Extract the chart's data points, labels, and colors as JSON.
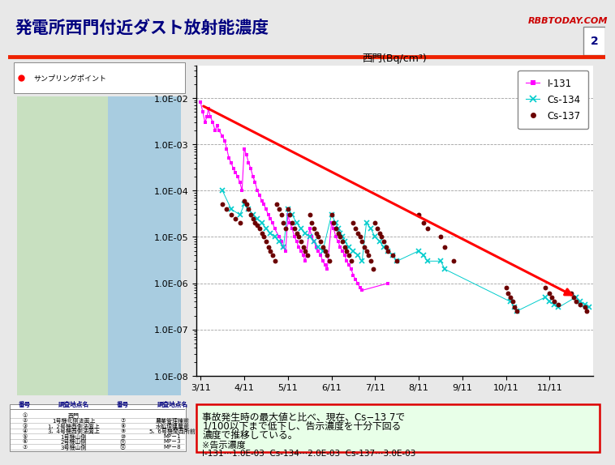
{
  "title": "発電所西門付近ダスト放射能濃度",
  "chart_title": "西門(Bq/cm³)",
  "rbbtoday": "RBBTODAY.COM",
  "page_num": "2",
  "xlabel_ticks": [
    "3/11",
    "4/11",
    "5/11",
    "6/11",
    "7/11",
    "8/11",
    "9/11",
    "10/11",
    "11/11"
  ],
  "ylabel_ticks": [
    "1.0E-02",
    "1.0E-03",
    "1.0E-04",
    "1.0E-05",
    "1.0E-06",
    "1.0E-07",
    "1.0E-08"
  ],
  "legend_labels": [
    "I-131",
    "Cs-134",
    "Cs-137"
  ],
  "i131_color": "#ff00ff",
  "cs134_color": "#00cccc",
  "cs137_color": "#6B0000",
  "bg_color": "#e8e8e8",
  "chart_bg": "#ffffff",
  "header_bg": "#ffffff",
  "title_color": "#000080",
  "rbb_color": "#cc0000",
  "box_bg": "#e8ffe8",
  "box_border": "#dd0000",
  "table_border": "#888888",
  "sampling_label": "サンプリングポイント",
  "box_text_line1": "事故発生時の最大値と比べ、現在、Cs−13 7で",
  "box_text_line2": "1/100以下まで低下し、告示濃度を十分下回る",
  "box_text_line3": "濃度で推移している。",
  "box_text_line4": "※告示濃度",
  "box_text_line5": "I-131⋯1.0E-03  Cs-134⋯2.0E-03  Cs-137⋯3.0E-03",
  "table_rows": [
    [
      "①",
      "西門",
      "",
      ""
    ],
    [
      "②",
      "1号機北側法面上",
      "⑦",
      "農業管理棟前"
    ],
    [
      "③",
      "1，2号機西側法面上",
      "⑧",
      "水処理建屋前"
    ],
    [
      "④",
      "3，4号機西側法面上",
      "⑨",
      "5，6号機間西所前"
    ],
    [
      "⑤",
      "1号機山側",
      "⑩",
      "MP－1"
    ],
    [
      "⑥",
      "2号機山側",
      "⑪",
      "MP－3"
    ],
    [
      "⑦",
      "3号機山側",
      "⑫",
      "MP－8"
    ]
  ],
  "table_headers": [
    "番号",
    "調査地点名",
    "番号",
    "調査地点名"
  ]
}
